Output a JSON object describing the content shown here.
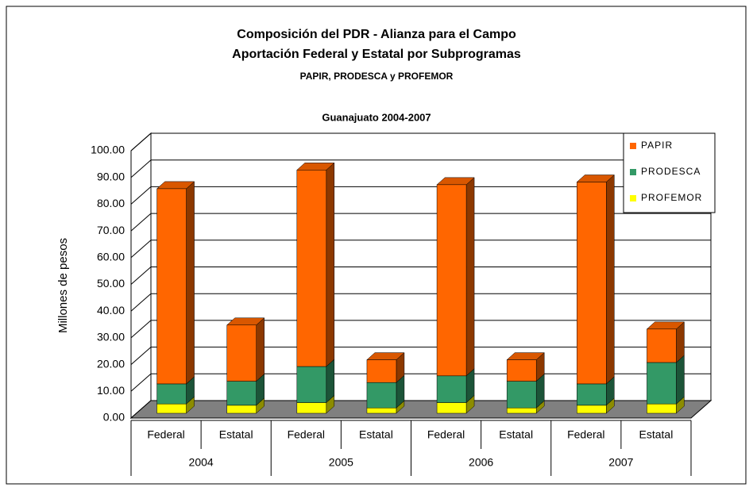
{
  "chart_data": {
    "type": "bar3d_stacked",
    "title": "Composición del PDR - Alianza para el Campo",
    "subtitle": "Aportación Federal y Estatal por Subprogramas",
    "subtitle2": "PAPIR, PRODESCA y PROFEMOR",
    "chart_title": "Guanajuato 2004-2007",
    "y_label": "Millones de pesos",
    "categories": [
      "Federal",
      "Estatal",
      "Federal",
      "Estatal",
      "Federal",
      "Estatal",
      "Federal",
      "Estatal"
    ],
    "groups": [
      "2004",
      "2005",
      "2006",
      "2007"
    ],
    "series": [
      {
        "name": "PAPIR",
        "color": "#ff6600",
        "values": [
          73,
          21,
          73.5,
          8.5,
          71.5,
          8,
          75.5,
          12.5
        ]
      },
      {
        "name": "PRODESCA",
        "color": "#339966",
        "values": [
          7.5,
          9,
          13.5,
          9.5,
          10,
          10,
          8,
          15.5
        ]
      },
      {
        "name": "PROFEMOR",
        "color": "#ffff00",
        "values": [
          3.5,
          3,
          4,
          2,
          4,
          2,
          3,
          3.5
        ]
      }
    ],
    "ylim": [
      0,
      100
    ],
    "yticks": [
      {
        "value": 0,
        "label": "0.00"
      },
      {
        "value": 10,
        "label": "10.00"
      },
      {
        "value": 20,
        "label": "20.00"
      },
      {
        "value": 30,
        "label": "30.00"
      },
      {
        "value": 40,
        "label": "40.00"
      },
      {
        "value": 50,
        "label": "50.00"
      },
      {
        "value": 60,
        "label": "60.00"
      },
      {
        "value": 70,
        "label": "70.00"
      },
      {
        "value": 80,
        "label": "80.00"
      },
      {
        "value": 90,
        "label": "90.00"
      },
      {
        "value": 100,
        "label": "100.00"
      }
    ],
    "grid": true,
    "legend": "upper right"
  }
}
